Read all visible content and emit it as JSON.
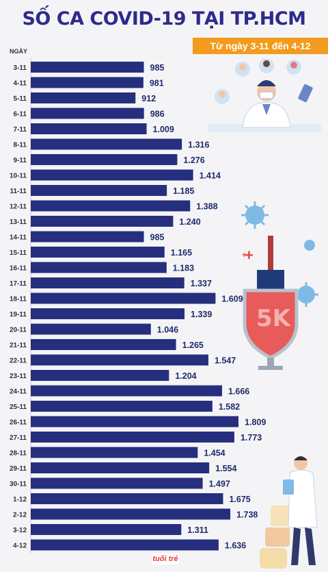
{
  "title": "SỐ CA COVID-19 TẠI TP.HCM",
  "subtitle": "Từ ngày 3-11 đến 4-12",
  "brand": "tuổi trẻ",
  "shield_text": "5K",
  "colors": {
    "bar": "#262f7d",
    "title": "#2f2a8c",
    "accent": "#f29b1e",
    "shield": "#e85b5b"
  },
  "chart_data": {
    "type": "bar",
    "orientation": "horizontal",
    "title": "SỐ CA COVID-19 TẠI TP.HCM",
    "subtitle": "Từ ngày 3-11 đến 4-12",
    "ylabel": "NGÀY",
    "xlabel": "",
    "xlim": [
      0,
      1809
    ],
    "grid": false,
    "categories": [
      "3-11",
      "4-11",
      "5-11",
      "6-11",
      "7-11",
      "8-11",
      "9-11",
      "10-11",
      "11-11",
      "12-11",
      "13-11",
      "14-11",
      "15-11",
      "16-11",
      "17-11",
      "18-11",
      "19-11",
      "20-11",
      "21-11",
      "22-11",
      "23-11",
      "24-11",
      "25-11",
      "26-11",
      "27-11",
      "28-11",
      "29-11",
      "30-11",
      "1-12",
      "2-12",
      "3-12",
      "4-12"
    ],
    "values": [
      985,
      981,
      912,
      986,
      1009,
      1316,
      1276,
      1414,
      1185,
      1388,
      1240,
      985,
      1165,
      1183,
      1337,
      1609,
      1339,
      1046,
      1265,
      1547,
      1204,
      1666,
      1582,
      1809,
      1773,
      1454,
      1554,
      1497,
      1675,
      1738,
      1311,
      1636
    ],
    "value_labels": [
      "985",
      "981",
      "912",
      "986",
      "1.009",
      "1.316",
      "1.276",
      "1.414",
      "1.185",
      "1.388",
      "1.240",
      "985",
      "1.165",
      "1.183",
      "1.337",
      "1.609",
      "1.339",
      "1.046",
      "1.265",
      "1.547",
      "1.204",
      "1.666",
      "1.582",
      "1.809",
      "1.773",
      "1.454",
      "1.554",
      "1.497",
      "1.675",
      "1.738",
      "1.311",
      "1.636"
    ]
  }
}
